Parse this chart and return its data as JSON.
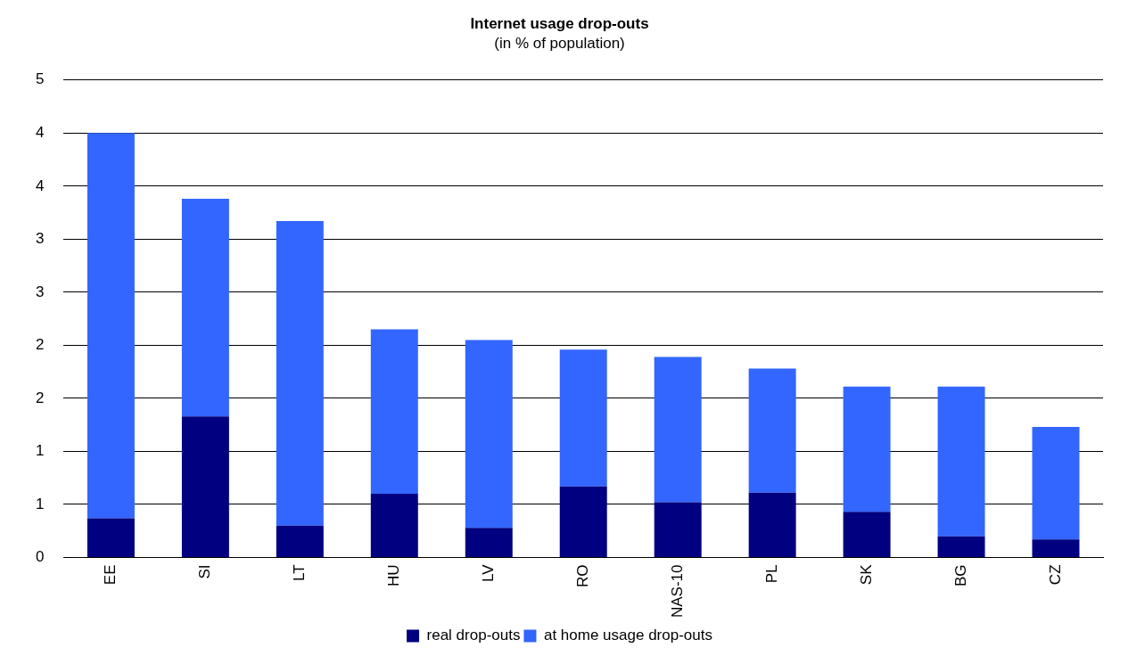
{
  "chart_data": {
    "type": "bar",
    "title": "Internet usage drop-outs",
    "subtitle": "(in % of population)",
    "categories": [
      "EE",
      "SI",
      "LT",
      "HU",
      "LV",
      "RO",
      "NAS-10",
      "PL",
      "SK",
      "BG",
      "CZ"
    ],
    "stacked": true,
    "series": [
      {
        "name": "real drop-outs",
        "color": "#000080",
        "values": [
          0.37,
          1.33,
          0.3,
          0.6,
          0.28,
          0.67,
          0.52,
          0.61,
          0.43,
          0.2,
          0.17
        ]
      },
      {
        "name": "at home usage drop-outs",
        "color": "#3366ff",
        "values": [
          3.63,
          2.05,
          2.87,
          1.55,
          1.77,
          1.29,
          1.37,
          1.17,
          1.18,
          1.41,
          1.06
        ]
      }
    ],
    "ylim": [
      0,
      4.5
    ],
    "yticks": [
      0,
      {
        "value": 0.5,
        "label": "1"
      },
      1,
      {
        "value": 1.5,
        "label": "2"
      },
      2,
      {
        "value": 2.5,
        "label": "3"
      },
      3,
      {
        "value": 3.5,
        "label": "4"
      },
      4,
      {
        "value": 4.5,
        "label": "5"
      }
    ],
    "grid": "y",
    "legend": "bottom"
  }
}
